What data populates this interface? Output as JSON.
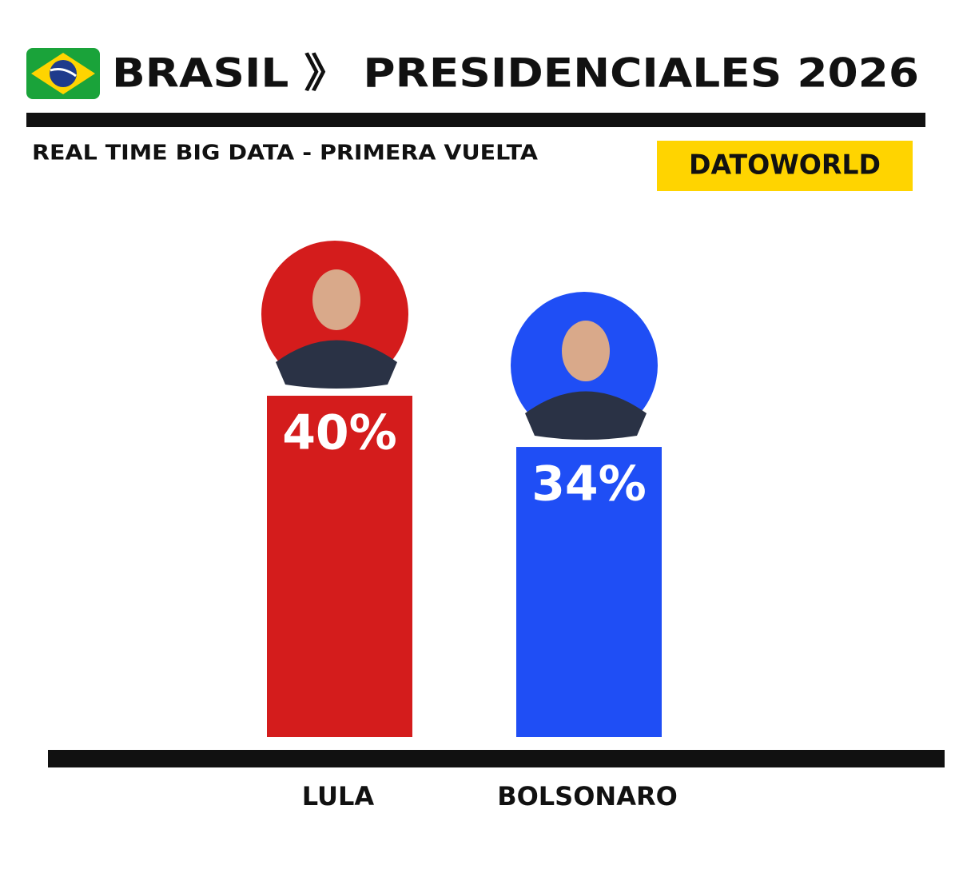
{
  "chart_data": {
    "type": "bar",
    "title": "BRASIL 》 PRESIDENCIALES 2026",
    "subtitle": "REAL TIME BIG DATA - PRIMERA VUELTA",
    "source": "DATOWORLD",
    "categories": [
      "LULA",
      "BOLSONARO"
    ],
    "values": [
      40,
      34
    ],
    "value_labels": [
      "40%",
      "34%"
    ],
    "colors": [
      "#d41c1c",
      "#1f4ef5"
    ]
  }
}
